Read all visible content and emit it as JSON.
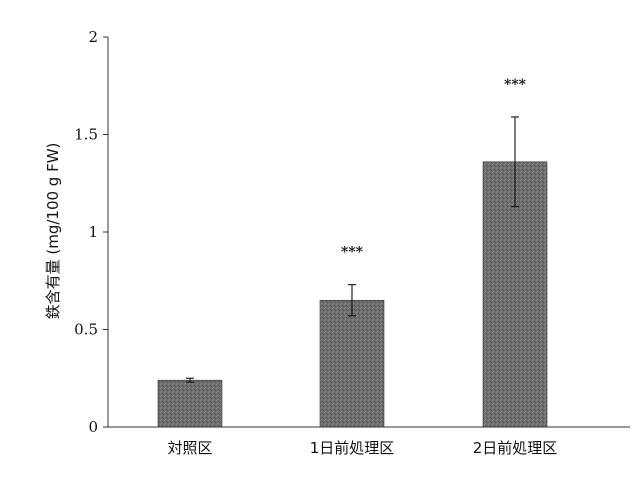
{
  "chart_data": {
    "type": "bar",
    "categories": [
      "対照区",
      "1日前処理区",
      "2日前処理区"
    ],
    "values": [
      0.24,
      0.65,
      1.36
    ],
    "error": [
      0.01,
      0.08,
      0.23
    ],
    "annotations": [
      "",
      "***",
      "***"
    ],
    "ylabel": "鉄含有量 (mg/100 g FW)",
    "ylim": [
      0,
      2
    ],
    "yticks": [
      "0",
      "0.5",
      "1",
      "1.5",
      "2"
    ],
    "grid": false,
    "bar_color": "#6e6e6e"
  }
}
